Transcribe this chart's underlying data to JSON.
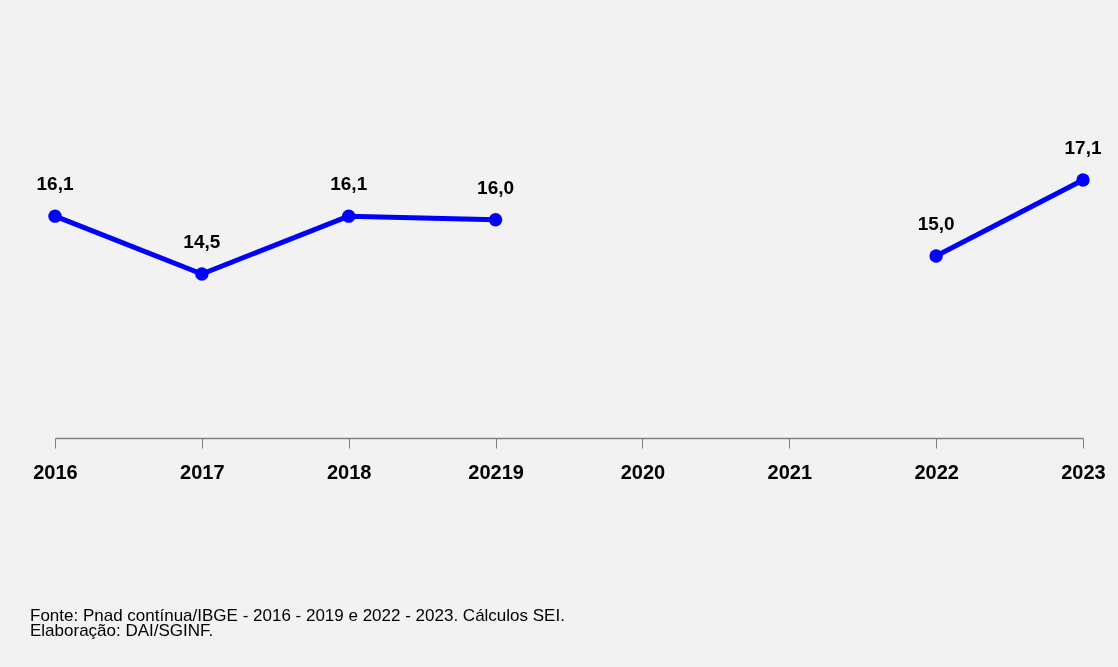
{
  "chart_data": {
    "type": "line",
    "categories": [
      "2016",
      "2017",
      "2018",
      "20219",
      "2020",
      "2021",
      "2022",
      "2023"
    ],
    "series": [
      {
        "color": "#0000ff",
        "values": [
          16.1,
          14.5,
          16.1,
          16.0,
          null,
          null,
          15.0,
          17.1
        ],
        "value_labels": [
          "16,1",
          "14,5",
          "16,1",
          "16,0",
          null,
          null,
          "15,0",
          "17,1"
        ]
      }
    ],
    "tick_labels": "x",
    "marker": "circle",
    "line_style": "solid",
    "annotations": [
      "Fonte: Pnad contínua/IBGE - 2016 - 2019 e 2022 - 2023. Cálculos SEI.",
      "Elaboração: DAI/SGINF."
    ]
  }
}
